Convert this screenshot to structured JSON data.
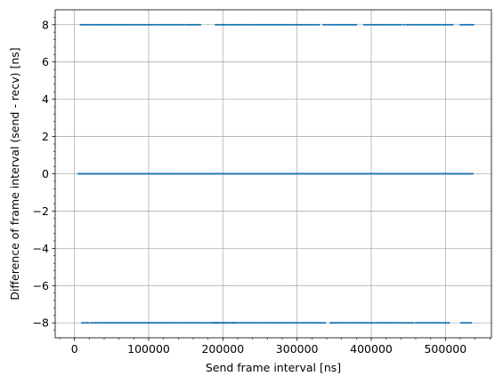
{
  "chart_data": {
    "type": "scatter",
    "xlabel": "Send frame interval [ns]",
    "ylabel": "Difference of frame interval (send - recv) [ns]",
    "xlim": [
      -26000,
      562000
    ],
    "ylim": [
      -8.8,
      8.8
    ],
    "x_ticks": [
      0,
      100000,
      200000,
      300000,
      400000,
      500000
    ],
    "x_tick_labels": [
      "0",
      "100000",
      "200000",
      "300000",
      "400000",
      "500000"
    ],
    "y_ticks": [
      -8,
      -6,
      -4,
      -2,
      0,
      2,
      4,
      6,
      8
    ],
    "y_tick_labels": [
      "−8",
      "−6",
      "−4",
      "−2",
      "0",
      "2",
      "4",
      "6",
      "8"
    ],
    "grid": true,
    "marker_color": "#1f77b4",
    "series": [
      {
        "y": 8,
        "x_segments": [
          [
            8000,
            148000
          ],
          [
            150000,
            170000
          ],
          [
            190000,
            330000
          ],
          [
            335000,
            380000
          ],
          [
            390000,
            510000
          ],
          [
            520000,
            538000
          ]
        ]
      },
      {
        "y": 0,
        "x_segments": [
          [
            5000,
            537000
          ]
        ]
      },
      {
        "y": -8,
        "x_segments": [
          [
            10000,
            208000
          ],
          [
            212000,
            218000
          ],
          [
            185000,
            338000
          ],
          [
            345000,
            505000
          ],
          [
            520000,
            535000
          ]
        ]
      }
    ]
  }
}
